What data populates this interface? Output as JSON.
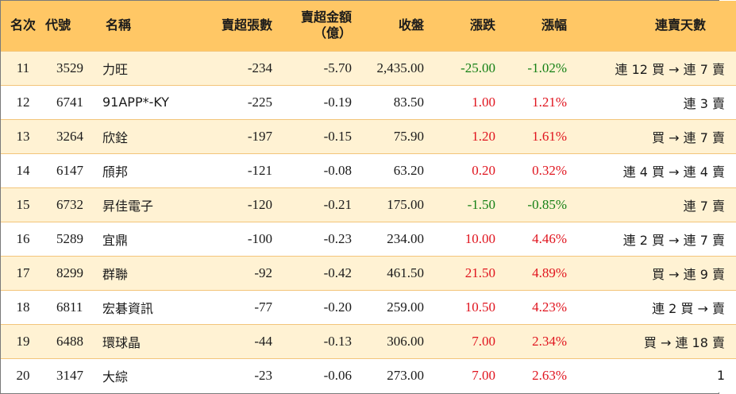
{
  "header": {
    "rank": "名次",
    "code": "代號",
    "name": "名稱",
    "net_sell_lots": "賣超張數",
    "net_sell_amount_line1": "賣超金額",
    "net_sell_amount_line2": "（億）",
    "close": "收盤",
    "change": "漲跌",
    "change_pct": "漲幅",
    "consecutive_days": "連賣天數"
  },
  "colors": {
    "header_bg": "#ffc765",
    "row_alt_bg": "#fff2d3",
    "up": "#e0141e",
    "down": "#158015"
  },
  "rows": [
    {
      "rank": "11",
      "code": "3529",
      "name": "力旺",
      "lots": "-234",
      "amount": "-5.70",
      "close": "2,435.00",
      "change": "-25.00",
      "pct": "-1.02%",
      "days": "連 12 買 → 連 7 賣",
      "dir": "down"
    },
    {
      "rank": "12",
      "code": "6741",
      "name": "91APP*-KY",
      "lots": "-225",
      "amount": "-0.19",
      "close": "83.50",
      "change": "1.00",
      "pct": "1.21%",
      "days": "連 3 賣",
      "dir": "up"
    },
    {
      "rank": "13",
      "code": "3264",
      "name": "欣銓",
      "lots": "-197",
      "amount": "-0.15",
      "close": "75.90",
      "change": "1.20",
      "pct": "1.61%",
      "days": "買 → 連 7 賣",
      "dir": "up"
    },
    {
      "rank": "14",
      "code": "6147",
      "name": "頎邦",
      "lots": "-121",
      "amount": "-0.08",
      "close": "63.20",
      "change": "0.20",
      "pct": "0.32%",
      "days": "連 4 買 → 連 4 賣",
      "dir": "up"
    },
    {
      "rank": "15",
      "code": "6732",
      "name": "昇佳電子",
      "lots": "-120",
      "amount": "-0.21",
      "close": "175.00",
      "change": "-1.50",
      "pct": "-0.85%",
      "days": "連 7 賣",
      "dir": "down"
    },
    {
      "rank": "16",
      "code": "5289",
      "name": "宜鼎",
      "lots": "-100",
      "amount": "-0.23",
      "close": "234.00",
      "change": "10.00",
      "pct": "4.46%",
      "days": "連 2 買 → 連 7 賣",
      "dir": "up"
    },
    {
      "rank": "17",
      "code": "8299",
      "name": "群聯",
      "lots": "-92",
      "amount": "-0.42",
      "close": "461.50",
      "change": "21.50",
      "pct": "4.89%",
      "days": "買 → 連 9 賣",
      "dir": "up"
    },
    {
      "rank": "18",
      "code": "6811",
      "name": "宏碁資訊",
      "lots": "-77",
      "amount": "-0.20",
      "close": "259.00",
      "change": "10.50",
      "pct": "4.23%",
      "days": "連 2 買 → 賣",
      "dir": "up"
    },
    {
      "rank": "19",
      "code": "6488",
      "name": "環球晶",
      "lots": "-44",
      "amount": "-0.13",
      "close": "306.00",
      "change": "7.00",
      "pct": "2.34%",
      "days": "買 → 連 18 賣",
      "dir": "up"
    },
    {
      "rank": "20",
      "code": "3147",
      "name": "大綜",
      "lots": "-23",
      "amount": "-0.06",
      "close": "273.00",
      "change": "7.00",
      "pct": "2.63%",
      "days": "1",
      "dir": "up"
    }
  ]
}
